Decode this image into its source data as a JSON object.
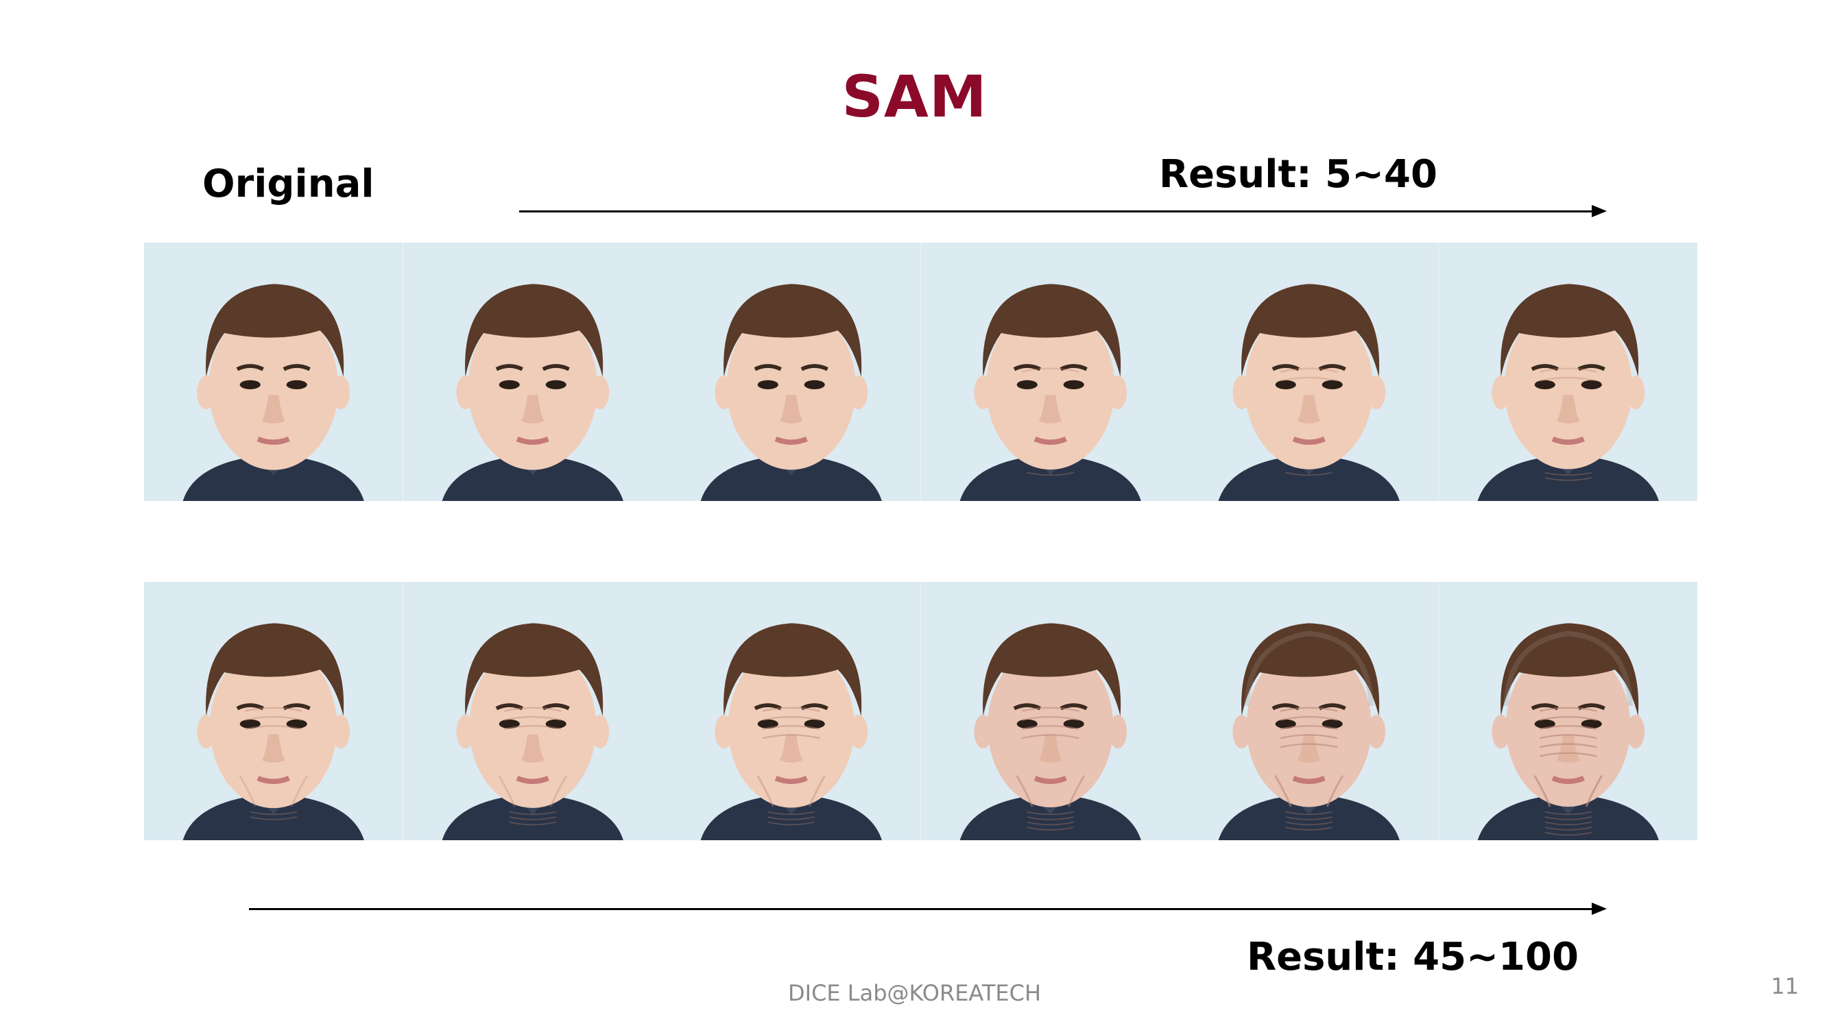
{
  "slide": {
    "title": "SAM",
    "original_label": "Original",
    "top_result_label": "Result: 5~40",
    "bottom_result_label": "Result: 45~100",
    "footer": "DICE  Lab@KOREATECH",
    "page_number": "11"
  },
  "colors": {
    "title": "#8b0a2a",
    "background_tile": "#dceaf2",
    "hair": "#5a3a28",
    "shirt": "#2a3448"
  },
  "rows": [
    {
      "name": "top",
      "age_levels": [
        0,
        0.02,
        0.08,
        0.15,
        0.25,
        0.32
      ]
    },
    {
      "name": "bottom",
      "age_levels": [
        0.42,
        0.5,
        0.6,
        0.72,
        0.85,
        0.95
      ]
    }
  ]
}
